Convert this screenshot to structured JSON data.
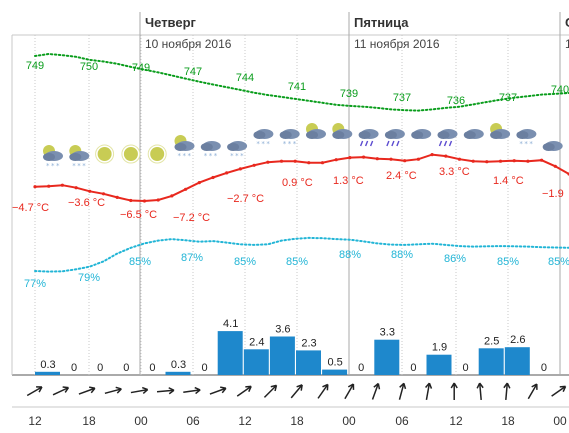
{
  "chart_data": {
    "type": "line",
    "days": [
      {
        "name": "Четверг",
        "date": "10 ноября 2016"
      },
      {
        "name": "Пятница",
        "date": "11 ноября 2016"
      },
      {
        "name": "С",
        "date": "1"
      }
    ],
    "hour_ticks": [
      "12",
      "18",
      "00",
      "06",
      "12",
      "18",
      "00",
      "06",
      "12",
      "18",
      "00"
    ],
    "pressure": {
      "unit": "mmHg",
      "values": [
        749,
        750,
        749,
        747,
        744,
        741,
        739,
        737,
        736,
        737,
        740
      ]
    },
    "temperature": {
      "unit": "°C",
      "labels": [
        "−4.7 °C",
        "−3.6 °C",
        "−6.5 °C",
        "−7.2 °C",
        "−2.7 °C",
        "0.9 °C",
        "1.3 °C",
        "2.4 °C",
        "3.3 °C",
        "1.4 °C",
        "−1.9"
      ],
      "values": [
        -4.7,
        -3.6,
        -6.5,
        -7.2,
        -2.7,
        0.9,
        1.3,
        2.4,
        3.3,
        1.4,
        -1.9
      ]
    },
    "humidity": {
      "unit": "%",
      "labels": [
        "77%",
        "79%",
        "85%",
        "87%",
        "85%",
        "85%",
        "88%",
        "88%",
        "86%",
        "85%",
        "85%"
      ],
      "values": [
        77,
        79,
        85,
        87,
        85,
        85,
        88,
        88,
        86,
        85,
        85
      ]
    },
    "precipitation": {
      "unit": "mm",
      "values": [
        0.3,
        0,
        0,
        0,
        0,
        0.3,
        0,
        4.1,
        2.4,
        3.6,
        2.3,
        0.5,
        0,
        3.3,
        0,
        1.9,
        0,
        2.5,
        2.6,
        0
      ]
    },
    "weather_icons": [
      "partly-cloudy-snow-icon",
      "partly-cloudy-snow-icon",
      "sun-icon",
      "sun-icon",
      "sun-icon",
      "partly-cloudy-snow-icon",
      "cloud-snow-icon",
      "cloud-snow-icon",
      "cloud-snow-icon",
      "cloud-snow-icon",
      "partly-cloudy-icon",
      "partly-cloudy-icon",
      "cloud-rain-icon",
      "cloud-rain-icon",
      "cloud-icon",
      "cloud-rain-icon",
      "cloud-icon",
      "partly-cloudy-icon",
      "cloud-snow-icon",
      "cloud-icon"
    ],
    "wind_direction_icons": [
      "wind-arrow-icon"
    ],
    "colors": {
      "pressure": "#0a9d1c",
      "temperature": "#e8281e",
      "humidity": "#22b5d6",
      "precipitation": "#1e88cc",
      "grid": "#c8c8c8"
    },
    "grid": true
  }
}
